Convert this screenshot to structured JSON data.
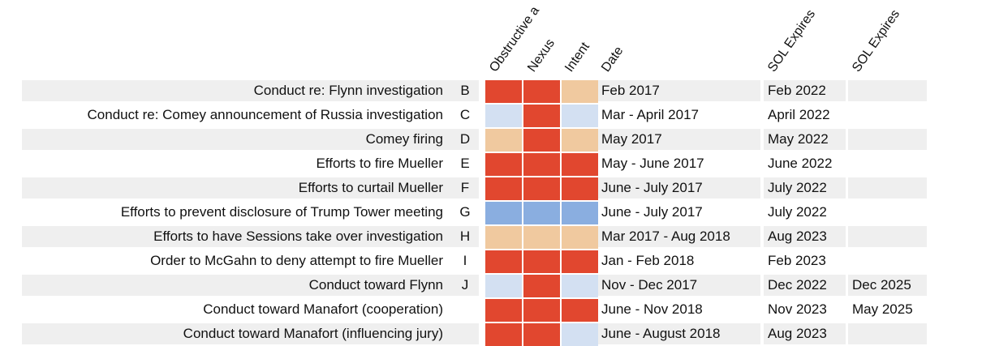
{
  "colors": {
    "red": "#e1472f",
    "tan": "#f0c99f",
    "lightblue": "#d3e0f2",
    "blue": "#8aaee0",
    "rowgray": "#efefef"
  },
  "chart_data": {
    "type": "table",
    "columns": {
      "obstructive": "Obstructive a",
      "nexus": "Nexus",
      "intent": "Intent",
      "date": "Date",
      "sol1": "SOL Expires",
      "sol2": "SOL Expires"
    },
    "rows": [
      {
        "label": "Conduct re: Flynn investigation",
        "letter": "B",
        "obstructive": "red",
        "nexus": "red",
        "intent": "tan",
        "date": "Feb 2017",
        "sol1": "Feb 2022",
        "sol2": ""
      },
      {
        "label": "Conduct re: Comey announcement of Russia investigation",
        "letter": "C",
        "obstructive": "lightblue",
        "nexus": "red",
        "intent": "lightblue",
        "date": "Mar - April 2017",
        "sol1": "April 2022",
        "sol2": ""
      },
      {
        "label": "Comey firing",
        "letter": "D",
        "obstructive": "tan",
        "nexus": "red",
        "intent": "tan",
        "date": "May 2017",
        "sol1": "May 2022",
        "sol2": ""
      },
      {
        "label": "Efforts to fire Mueller",
        "letter": "E",
        "obstructive": "red",
        "nexus": "red",
        "intent": "red",
        "date": "May - June 2017",
        "sol1": "June 2022",
        "sol2": ""
      },
      {
        "label": "Efforts to curtail Mueller",
        "letter": "F",
        "obstructive": "red",
        "nexus": "red",
        "intent": "red",
        "date": "June - July 2017",
        "sol1": "July 2022",
        "sol2": ""
      },
      {
        "label": "Efforts to prevent disclosure of Trump Tower meeting",
        "letter": "G",
        "obstructive": "blue",
        "nexus": "blue",
        "intent": "blue",
        "date": "June - July 2017",
        "sol1": "July 2022",
        "sol2": ""
      },
      {
        "label": "Efforts to have Sessions take over investigation",
        "letter": "H",
        "obstructive": "tan",
        "nexus": "tan",
        "intent": "tan",
        "date": "Mar 2017 - Aug 2018",
        "sol1": "Aug 2023",
        "sol2": ""
      },
      {
        "label": "Order to McGahn to deny attempt to fire Mueller",
        "letter": "I",
        "obstructive": "red",
        "nexus": "red",
        "intent": "red",
        "date": "Jan - Feb 2018",
        "sol1": "Feb 2023",
        "sol2": ""
      },
      {
        "label": "Conduct toward Flynn",
        "letter": "J",
        "obstructive": "lightblue",
        "nexus": "red",
        "intent": "lightblue",
        "date": "Nov - Dec 2017",
        "sol1": "Dec 2022",
        "sol2": "Dec 2025"
      },
      {
        "label": "Conduct toward Manafort (cooperation)",
        "letter": "",
        "obstructive": "red",
        "nexus": "red",
        "intent": "red",
        "date": "June - Nov 2018",
        "sol1": "Nov 2023",
        "sol2": "May 2025"
      },
      {
        "label": "Conduct toward Manafort (influencing jury)",
        "letter": "",
        "obstructive": "red",
        "nexus": "red",
        "intent": "lightblue",
        "date": "June - August 2018",
        "sol1": "Aug 2023",
        "sol2": ""
      }
    ]
  }
}
